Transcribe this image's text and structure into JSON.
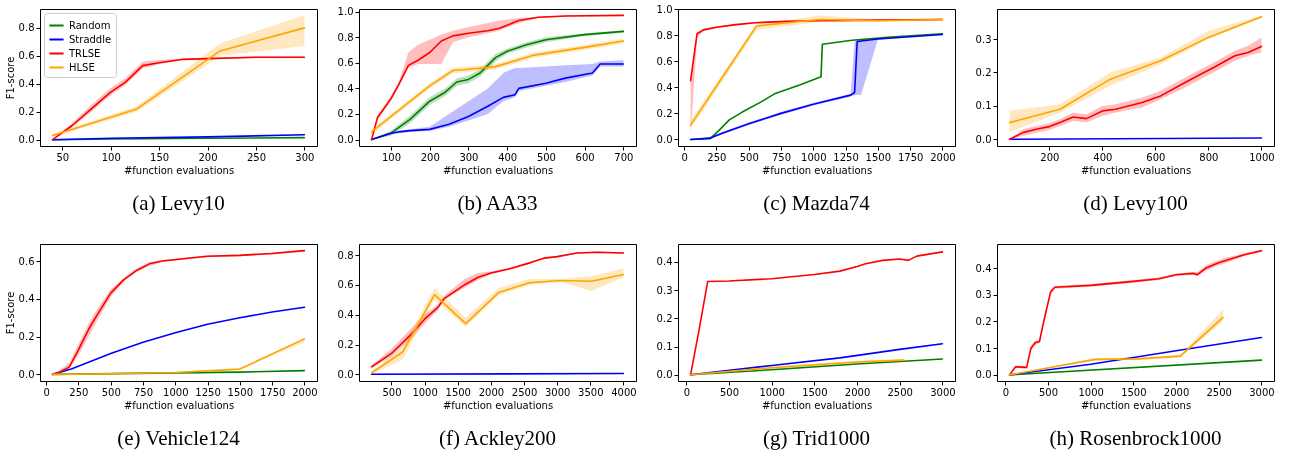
{
  "chart_data": [
    {
      "type": "line",
      "title": "(a) Levy10",
      "xlabel": "#function evaluations",
      "ylabel": "F1-score",
      "legend": "top left",
      "xlim": [
        27,
        313
      ],
      "ylim": [
        -0.045,
        0.935
      ],
      "xticks": [
        50,
        100,
        150,
        200,
        250,
        300
      ],
      "yticks": [
        {
          "value": 0,
          "label": "0.0"
        },
        {
          "value": 0.2,
          "label": "0.2"
        },
        {
          "value": 0.4,
          "label": "0.4"
        },
        {
          "value": 0.6,
          "label": "0.6"
        },
        {
          "value": 0.8,
          "label": "0.8"
        }
      ],
      "series": [
        {
          "name": "Random",
          "color": "#008000",
          "x": [
            40,
            100,
            200,
            300
          ],
          "values": [
            0,
            0.005,
            0.01,
            0.015
          ]
        },
        {
          "name": "Straddle",
          "color": "#0000ff",
          "x": [
            40,
            100,
            200,
            300
          ],
          "values": [
            0,
            0.01,
            0.02,
            0.035
          ]
        },
        {
          "name": "TRLSE",
          "color": "#ff0000",
          "x": [
            40,
            60,
            80,
            100,
            115,
            133,
            150,
            175,
            200,
            250,
            300
          ],
          "values": [
            0,
            0.1,
            0.22,
            0.34,
            0.41,
            0.53,
            0.55,
            0.575,
            0.58,
            0.59,
            0.59
          ],
          "lower": [
            0,
            0.09,
            0.2,
            0.32,
            0.39,
            0.51,
            0.54,
            0.57,
            0.575,
            0.585,
            0.585
          ],
          "upper": [
            0,
            0.12,
            0.25,
            0.37,
            0.44,
            0.56,
            0.57,
            0.58,
            0.585,
            0.595,
            0.595
          ]
        },
        {
          "name": "HLSE",
          "color": "#ffa500",
          "x": [
            40,
            127,
            213,
            300
          ],
          "values": [
            0.03,
            0.22,
            0.635,
            0.8
          ],
          "lower": [
            0.02,
            0.2,
            0.6,
            0.67
          ],
          "upper": [
            0.04,
            0.24,
            0.69,
            0.89
          ]
        }
      ]
    },
    {
      "type": "line",
      "title": "(b) AA33",
      "xlabel": "#function evaluations",
      "xlim": [
        17.5,
        732.5
      ],
      "ylim": [
        -0.05,
        1.02
      ],
      "xticks": [
        100,
        200,
        300,
        400,
        500,
        600,
        700
      ],
      "yticks": [
        {
          "value": 0,
          "label": "0.0"
        },
        {
          "value": 0.2,
          "label": "0.2"
        },
        {
          "value": 0.4,
          "label": "0.4"
        },
        {
          "value": 0.6,
          "label": "0.6"
        },
        {
          "value": 0.8,
          "label": "0.8"
        },
        {
          "value": 1,
          "label": "1.0"
        }
      ],
      "series": [
        {
          "color": "#008000",
          "x": [
            50,
            100,
            150,
            200,
            240,
            270,
            300,
            330,
            370,
            400,
            450,
            500,
            600,
            700
          ],
          "values": [
            0,
            0.05,
            0.16,
            0.3,
            0.37,
            0.45,
            0.47,
            0.52,
            0.64,
            0.69,
            0.74,
            0.78,
            0.82,
            0.845
          ],
          "lower": [
            0,
            0.03,
            0.13,
            0.27,
            0.34,
            0.42,
            0.44,
            0.49,
            0.61,
            0.67,
            0.72,
            0.76,
            0.81,
            0.835
          ],
          "upper": [
            0,
            0.07,
            0.19,
            0.33,
            0.4,
            0.48,
            0.5,
            0.55,
            0.67,
            0.71,
            0.76,
            0.8,
            0.83,
            0.855
          ]
        },
        {
          "color": "#0000ff",
          "x": [
            50,
            100,
            120,
            150,
            200,
            250,
            300,
            350,
            390,
            420,
            430,
            500,
            550,
            620,
            640,
            700
          ],
          "values": [
            0,
            0.05,
            0.06,
            0.07,
            0.08,
            0.12,
            0.18,
            0.26,
            0.33,
            0.35,
            0.4,
            0.44,
            0.48,
            0.52,
            0.59,
            0.59
          ],
          "lower": [
            0,
            0.04,
            0.05,
            0.06,
            0.07,
            0.1,
            0.15,
            0.2,
            0.3,
            0.33,
            0.38,
            0.42,
            0.45,
            0.5,
            0.57,
            0.57
          ],
          "upper": [
            0,
            0.06,
            0.07,
            0.08,
            0.1,
            0.2,
            0.3,
            0.4,
            0.52,
            0.56,
            0.56,
            0.57,
            0.58,
            0.59,
            0.61,
            0.62
          ]
        },
        {
          "color": "#ff0000",
          "x": [
            50,
            65,
            100,
            120,
            145,
            170,
            200,
            230,
            260,
            300,
            350,
            380,
            430,
            480,
            550,
            700
          ],
          "values": [
            0,
            0.17,
            0.32,
            0.43,
            0.58,
            0.62,
            0.68,
            0.77,
            0.81,
            0.83,
            0.85,
            0.87,
            0.93,
            0.955,
            0.965,
            0.97
          ],
          "lower": [
            0,
            0.15,
            0.3,
            0.41,
            0.56,
            0.59,
            0.59,
            0.59,
            0.76,
            0.8,
            0.83,
            0.85,
            0.91,
            0.95,
            0.96,
            0.97
          ],
          "upper": [
            0,
            0.19,
            0.34,
            0.45,
            0.68,
            0.74,
            0.78,
            0.82,
            0.85,
            0.88,
            0.91,
            0.93,
            0.95,
            0.96,
            0.97,
            0.97
          ]
        },
        {
          "color": "#ffa500",
          "x": [
            50,
            150,
            200,
            260,
            300,
            370,
            470,
            600,
            700
          ],
          "values": [
            0.06,
            0.3,
            0.42,
            0.54,
            0.55,
            0.57,
            0.66,
            0.72,
            0.77
          ],
          "lower": [
            0.04,
            0.28,
            0.4,
            0.52,
            0.53,
            0.55,
            0.64,
            0.7,
            0.75
          ],
          "upper": [
            0.08,
            0.32,
            0.44,
            0.56,
            0.57,
            0.59,
            0.68,
            0.74,
            0.79
          ]
        }
      ]
    },
    {
      "type": "line",
      "title": "(c) Mazda74",
      "xlabel": "#function evaluations",
      "xlim": [
        -47.5,
        2097.5
      ],
      "ylim": [
        -0.05,
        1.0
      ],
      "xticks": [
        0,
        250,
        500,
        750,
        1000,
        1250,
        1500,
        1750,
        2000
      ],
      "yticks": [
        {
          "value": 0,
          "label": "0.0"
        },
        {
          "value": 0.2,
          "label": "0.2"
        },
        {
          "value": 0.4,
          "label": "0.4"
        },
        {
          "value": 0.6,
          "label": "0.6"
        },
        {
          "value": 0.8,
          "label": "0.8"
        },
        {
          "value": 1,
          "label": "1.0"
        }
      ],
      "series": [
        {
          "color": "#008000",
          "x": [
            50,
            200,
            270,
            350,
            450,
            600,
            700,
            900,
            1060,
            1070,
            1300,
            1600,
            2000
          ],
          "values": [
            0,
            0.005,
            0.07,
            0.15,
            0.21,
            0.29,
            0.35,
            0.42,
            0.48,
            0.73,
            0.76,
            0.785,
            0.81
          ]
        },
        {
          "color": "#0000ff",
          "x": [
            50,
            200,
            300,
            500,
            750,
            1000,
            1290,
            1320,
            1340,
            1370,
            1500,
            2000
          ],
          "values": [
            0,
            0.01,
            0.05,
            0.12,
            0.2,
            0.27,
            0.34,
            0.36,
            0.75,
            0.755,
            0.77,
            0.805
          ],
          "lower": [
            0,
            0.01,
            0.04,
            0.11,
            0.19,
            0.26,
            0.33,
            0.34,
            0.34,
            0.34,
            0.765,
            0.8
          ],
          "upper": [
            0,
            0.02,
            0.06,
            0.13,
            0.21,
            0.28,
            0.35,
            0.75,
            0.76,
            0.76,
            0.775,
            0.81
          ]
        },
        {
          "color": "#ff0000",
          "x": [
            50,
            100,
            150,
            250,
            400,
            550,
            800,
            1000,
            1500,
            2000
          ],
          "values": [
            0.45,
            0.81,
            0.84,
            0.86,
            0.88,
            0.895,
            0.905,
            0.91,
            0.915,
            0.92
          ],
          "lower": [
            0.02,
            0.78,
            0.83,
            0.855,
            0.875,
            0.89,
            0.9,
            0.905,
            0.91,
            0.915
          ],
          "upper": [
            0.45,
            0.82,
            0.85,
            0.865,
            0.885,
            0.9,
            0.91,
            0.915,
            0.92,
            0.925
          ]
        },
        {
          "color": "#ffa500",
          "x": [
            50,
            560,
            1050,
            1500,
            2000
          ],
          "values": [
            0.11,
            0.87,
            0.92,
            0.91,
            0.92
          ],
          "lower": [
            0.08,
            0.84,
            0.9,
            0.9,
            0.91
          ],
          "upper": [
            0.15,
            0.88,
            0.95,
            0.92,
            0.93
          ]
        }
      ]
    },
    {
      "type": "line",
      "title": "(d) Levy100",
      "xlabel": "#function evaluations",
      "xlim": [
        2.5,
        1047.5
      ],
      "ylim": [
        -0.02,
        0.39
      ],
      "xticks": [
        200,
        400,
        600,
        800,
        1000
      ],
      "yticks": [
        {
          "value": 0,
          "label": "0.0"
        },
        {
          "value": 0.1,
          "label": "0.1"
        },
        {
          "value": 0.2,
          "label": "0.2"
        },
        {
          "value": 0.3,
          "label": "0.3"
        }
      ],
      "series": [
        {
          "color": "#0000ff",
          "x": [
            50,
            1000
          ],
          "values": [
            0,
            0.004
          ]
        },
        {
          "color": "#ff0000",
          "x": [
            50,
            100,
            150,
            200,
            240,
            290,
            340,
            400,
            450,
            550,
            620,
            700,
            760,
            820,
            900,
            950,
            1000
          ],
          "values": [
            0,
            0.02,
            0.03,
            0.038,
            0.05,
            0.067,
            0.062,
            0.085,
            0.09,
            0.11,
            0.13,
            0.165,
            0.19,
            0.215,
            0.25,
            0.26,
            0.278
          ],
          "lower": [
            0,
            0.01,
            0.02,
            0.028,
            0.04,
            0.055,
            0.05,
            0.07,
            0.08,
            0.095,
            0.12,
            0.15,
            0.175,
            0.2,
            0.235,
            0.25,
            0.26
          ],
          "upper": [
            0,
            0.03,
            0.04,
            0.048,
            0.06,
            0.08,
            0.075,
            0.1,
            0.105,
            0.125,
            0.145,
            0.18,
            0.205,
            0.23,
            0.265,
            0.28,
            0.305
          ]
        },
        {
          "color": "#ffa500",
          "x": [
            50,
            240,
            430,
            620,
            800,
            1000
          ],
          "values": [
            0.05,
            0.09,
            0.18,
            0.235,
            0.305,
            0.367
          ],
          "lower": [
            0.022,
            0.08,
            0.16,
            0.225,
            0.3,
            0.362
          ],
          "upper": [
            0.085,
            0.105,
            0.2,
            0.245,
            0.325,
            0.37
          ]
        }
      ]
    },
    {
      "type": "line",
      "title": "(e) Vehicle124",
      "xlabel": "#function evaluations",
      "ylabel": "F1-score",
      "xlim": [
        -47.5,
        2097.5
      ],
      "ylim": [
        -0.035,
        0.69
      ],
      "xticks": [
        0,
        250,
        500,
        750,
        1000,
        1250,
        1500,
        1750,
        2000
      ],
      "yticks": [
        {
          "value": 0,
          "label": "0.0"
        },
        {
          "value": 0.2,
          "label": "0.2"
        },
        {
          "value": 0.4,
          "label": "0.4"
        },
        {
          "value": 0.6,
          "label": "0.6"
        }
      ],
      "series": [
        {
          "color": "#008000",
          "x": [
            50,
            1000,
            1500,
            2000
          ],
          "values": [
            0,
            0.008,
            0.012,
            0.02
          ]
        },
        {
          "color": "#0000ff",
          "x": [
            50,
            200,
            500,
            750,
            1000,
            1250,
            1500,
            1750,
            2000
          ],
          "values": [
            0,
            0.03,
            0.11,
            0.17,
            0.22,
            0.265,
            0.3,
            0.33,
            0.355
          ]
        },
        {
          "color": "#ff0000",
          "x": [
            50,
            100,
            180,
            250,
            330,
            400,
            500,
            600,
            700,
            800,
            900,
            1100,
            1250,
            1500,
            1750,
            2000
          ],
          "values": [
            0,
            0.01,
            0.04,
            0.13,
            0.24,
            0.32,
            0.43,
            0.5,
            0.55,
            0.585,
            0.6,
            0.615,
            0.625,
            0.63,
            0.64,
            0.655
          ],
          "lower": [
            0,
            0.01,
            0.03,
            0.1,
            0.2,
            0.29,
            0.41,
            0.49,
            0.54,
            0.575,
            0.595,
            0.61,
            0.62,
            0.625,
            0.635,
            0.65
          ],
          "upper": [
            0,
            0.02,
            0.06,
            0.16,
            0.27,
            0.35,
            0.45,
            0.51,
            0.56,
            0.595,
            0.605,
            0.62,
            0.63,
            0.635,
            0.645,
            0.66
          ]
        },
        {
          "color": "#ffa500",
          "x": [
            50,
            500,
            1000,
            1500,
            2000
          ],
          "values": [
            0,
            0.003,
            0.01,
            0.028,
            0.188
          ],
          "lower": [
            0,
            0.002,
            0.008,
            0.025,
            0.17
          ],
          "upper": [
            0,
            0.005,
            0.012,
            0.031,
            0.195
          ]
        }
      ]
    },
    {
      "type": "line",
      "title": "(f) Ackley200",
      "xlabel": "#function evaluations",
      "xlim": [
        10,
        4190
      ],
      "ylim": [
        -0.045,
        0.875
      ],
      "xticks": [
        500,
        1000,
        1500,
        2000,
        2500,
        3000,
        3500,
        4000
      ],
      "yticks": [
        {
          "value": 0,
          "label": "0.0"
        },
        {
          "value": 0.2,
          "label": "0.2"
        },
        {
          "value": 0.4,
          "label": "0.4"
        },
        {
          "value": 0.6,
          "label": "0.6"
        },
        {
          "value": 0.8,
          "label": "0.8"
        }
      ],
      "series": [
        {
          "color": "#0000ff",
          "x": [
            200,
            4000
          ],
          "values": [
            0,
            0.005
          ]
        },
        {
          "color": "#ff0000",
          "x": [
            200,
            500,
            800,
            1000,
            1200,
            1300,
            1600,
            1800,
            2000,
            2300,
            2600,
            2800,
            3000,
            3300,
            3600,
            4000
          ],
          "values": [
            0.05,
            0.14,
            0.27,
            0.37,
            0.45,
            0.51,
            0.6,
            0.65,
            0.68,
            0.71,
            0.75,
            0.78,
            0.79,
            0.815,
            0.82,
            0.815
          ],
          "lower": [
            0.04,
            0.12,
            0.24,
            0.34,
            0.43,
            0.5,
            0.58,
            0.63,
            0.67,
            0.705,
            0.745,
            0.775,
            0.785,
            0.81,
            0.815,
            0.81
          ],
          "upper": [
            0.06,
            0.17,
            0.31,
            0.4,
            0.47,
            0.53,
            0.64,
            0.68,
            0.69,
            0.72,
            0.755,
            0.785,
            0.795,
            0.82,
            0.825,
            0.82
          ]
        },
        {
          "color": "#ffa500",
          "x": [
            200,
            670,
            1150,
            1620,
            2120,
            2580,
            3050,
            3520,
            4000
          ],
          "values": [
            0.01,
            0.15,
            0.535,
            0.34,
            0.55,
            0.615,
            0.63,
            0.625,
            0.67
          ],
          "lower": [
            0,
            0.1,
            0.5,
            0.32,
            0.53,
            0.6,
            0.62,
            0.56,
            0.65
          ],
          "upper": [
            0.02,
            0.18,
            0.58,
            0.38,
            0.58,
            0.64,
            0.64,
            0.66,
            0.71
          ]
        }
      ]
    },
    {
      "type": "line",
      "title": "(g) Trid1000",
      "xlabel": "#function evaluations",
      "xlim": [
        -97.5,
        3147.5
      ],
      "ylim": [
        -0.022,
        0.463
      ],
      "xticks": [
        0,
        500,
        1000,
        1500,
        2000,
        2500,
        3000
      ],
      "yticks": [
        {
          "value": 0,
          "label": "0.0"
        },
        {
          "value": 0.1,
          "label": "0.1"
        },
        {
          "value": 0.2,
          "label": "0.2"
        },
        {
          "value": 0.3,
          "label": "0.3"
        },
        {
          "value": 0.4,
          "label": "0.4"
        }
      ],
      "series": [
        {
          "color": "#008000",
          "x": [
            50,
            1000,
            2000,
            3000
          ],
          "values": [
            0,
            0.018,
            0.038,
            0.056
          ]
        },
        {
          "color": "#0000ff",
          "x": [
            50,
            1000,
            1800,
            2500,
            3000
          ],
          "values": [
            0,
            0.033,
            0.06,
            0.09,
            0.11
          ]
        },
        {
          "color": "#ff0000",
          "x": [
            50,
            150,
            250,
            500,
            1000,
            1500,
            1800,
            2000,
            2100,
            2300,
            2500,
            2600,
            2700,
            3000
          ],
          "values": [
            0,
            0.16,
            0.33,
            0.332,
            0.34,
            0.355,
            0.367,
            0.383,
            0.393,
            0.405,
            0.41,
            0.405,
            0.42,
            0.435
          ]
        },
        {
          "color": "#ffa500",
          "x": [
            50,
            1000,
            2000,
            2550
          ],
          "values": [
            0,
            0.025,
            0.045,
            0.052
          ],
          "lower": [
            0,
            0.02,
            0.04,
            0.047
          ],
          "upper": [
            0,
            0.03,
            0.05,
            0.057
          ]
        }
      ]
    },
    {
      "type": "line",
      "title": "(h) Rosenbrock1000",
      "xlabel": "#function evaluations",
      "xlim": [
        -97.5,
        3147.5
      ],
      "ylim": [
        -0.023,
        0.49
      ],
      "xticks": [
        0,
        500,
        1000,
        1500,
        2000,
        2500,
        3000
      ],
      "yticks": [
        {
          "value": 0,
          "label": "0.0"
        },
        {
          "value": 0.1,
          "label": "0.1"
        },
        {
          "value": 0.2,
          "label": "0.2"
        },
        {
          "value": 0.3,
          "label": "0.3"
        },
        {
          "value": 0.4,
          "label": "0.4"
        }
      ],
      "series": [
        {
          "color": "#008000",
          "x": [
            50,
            3000
          ],
          "values": [
            0,
            0.055
          ]
        },
        {
          "color": "#0000ff",
          "x": [
            50,
            1000,
            2000,
            3000
          ],
          "values": [
            0,
            0.04,
            0.09,
            0.14
          ]
        },
        {
          "color": "#ff0000",
          "x": [
            50,
            120,
            250,
            300,
            350,
            400,
            450,
            530,
            580,
            1000,
            1500,
            1800,
            2000,
            2200,
            2250,
            2350,
            2500,
            2600,
            2800,
            3000
          ],
          "values": [
            0,
            0.03,
            0.028,
            0.1,
            0.12,
            0.125,
            0.2,
            0.31,
            0.328,
            0.335,
            0.35,
            0.36,
            0.375,
            0.38,
            0.375,
            0.4,
            0.42,
            0.43,
            0.45,
            0.465
          ],
          "lower": [
            0,
            0.025,
            0.024,
            0.09,
            0.11,
            0.12,
            0.19,
            0.3,
            0.322,
            0.33,
            0.345,
            0.355,
            0.37,
            0.375,
            0.37,
            0.39,
            0.41,
            0.42,
            0.445,
            0.46
          ],
          "upper": [
            0,
            0.035,
            0.032,
            0.11,
            0.13,
            0.13,
            0.21,
            0.32,
            0.333,
            0.34,
            0.355,
            0.365,
            0.38,
            0.385,
            0.385,
            0.41,
            0.43,
            0.44,
            0.455,
            0.47
          ]
        },
        {
          "color": "#ffa500",
          "x": [
            50,
            1050,
            1550,
            2050,
            2550
          ],
          "values": [
            0,
            0.058,
            0.06,
            0.07,
            0.215
          ],
          "lower": [
            0,
            0.053,
            0.055,
            0.065,
            0.2
          ],
          "upper": [
            0,
            0.063,
            0.065,
            0.075,
            0.245
          ]
        }
      ]
    }
  ]
}
